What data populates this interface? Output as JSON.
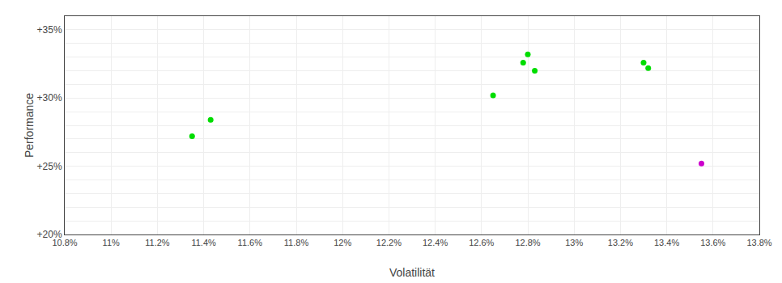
{
  "chart_data": {
    "type": "scatter",
    "xlabel": "Volatilität",
    "ylabel": "Performance",
    "series": [
      {
        "color": "#00dd00",
        "marker": "circle",
        "x": [
          0.1135,
          0.1143,
          0.1265,
          0.1278,
          0.128,
          0.1283,
          0.133,
          0.1332
        ],
        "values": [
          0.272,
          0.284,
          0.302,
          0.326,
          0.332,
          0.32,
          0.326,
          0.322
        ]
      },
      {
        "color": "#cc00cc",
        "marker": "circle",
        "x": [
          0.1355
        ],
        "values": [
          0.252
        ]
      }
    ],
    "xlim": [
      0.108,
      0.138
    ],
    "ylim": [
      0.2,
      0.36
    ],
    "xticks": [
      {
        "value": 0.108,
        "label": "10.8%"
      },
      {
        "value": 0.11,
        "label": "11%"
      },
      {
        "value": 0.112,
        "label": "11.2%"
      },
      {
        "value": 0.114,
        "label": "11.4%"
      },
      {
        "value": 0.116,
        "label": "11.6%"
      },
      {
        "value": 0.118,
        "label": "11.8%"
      },
      {
        "value": 0.12,
        "label": "12%"
      },
      {
        "value": 0.122,
        "label": "12.2%"
      },
      {
        "value": 0.124,
        "label": "12.4%"
      },
      {
        "value": 0.126,
        "label": "12.6%"
      },
      {
        "value": 0.128,
        "label": "12.8%"
      },
      {
        "value": 0.13,
        "label": "13%"
      },
      {
        "value": 0.132,
        "label": "13.2%"
      },
      {
        "value": 0.134,
        "label": "13.4%"
      },
      {
        "value": 0.136,
        "label": "13.6%"
      },
      {
        "value": 0.138,
        "label": "13.8%"
      }
    ],
    "yticks": [
      {
        "value": 0.2,
        "label": "+20%"
      },
      {
        "value": 0.21,
        "label": null
      },
      {
        "value": 0.22,
        "label": null
      },
      {
        "value": 0.23,
        "label": null
      },
      {
        "value": 0.24,
        "label": null
      },
      {
        "value": 0.25,
        "label": "+25%"
      },
      {
        "value": 0.26,
        "label": null
      },
      {
        "value": 0.27,
        "label": null
      },
      {
        "value": 0.28,
        "label": null
      },
      {
        "value": 0.29,
        "label": null
      },
      {
        "value": 0.3,
        "label": "+30%"
      },
      {
        "value": 0.31,
        "label": null
      },
      {
        "value": 0.32,
        "label": null
      },
      {
        "value": 0.33,
        "label": null
      },
      {
        "value": 0.34,
        "label": null
      },
      {
        "value": 0.35,
        "label": "+35%"
      }
    ],
    "grid": true
  }
}
